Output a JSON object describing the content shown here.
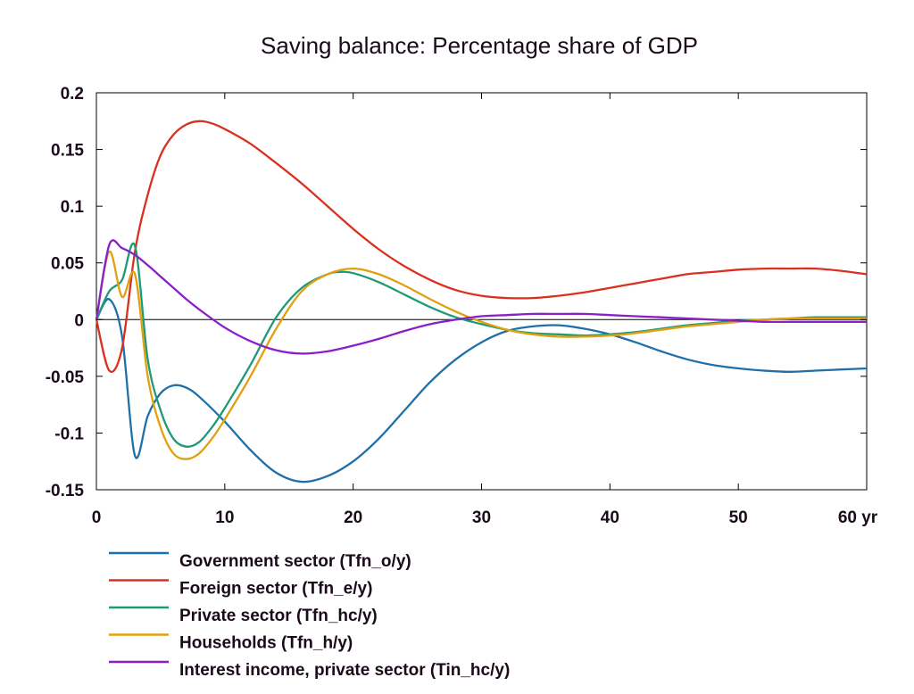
{
  "chart_data": {
    "type": "line",
    "title": "Saving balance: Percentage share of GDP",
    "xlabel": "yr",
    "ylabel": "",
    "xlim": [
      0,
      60
    ],
    "ylim": [
      -0.15,
      0.2
    ],
    "xticks": [
      0,
      10,
      20,
      30,
      40,
      50,
      60
    ],
    "xtick_labels": [
      "0",
      "10",
      "20",
      "30",
      "40",
      "50",
      "60 yr"
    ],
    "yticks": [
      0.2,
      0.15,
      0.1,
      0.05,
      0,
      -0.05,
      -0.1,
      -0.15
    ],
    "ytick_labels": [
      "0.2",
      "0.15",
      "0.1",
      "0.05",
      "0",
      "-0.05",
      "-0.1",
      "-0.15"
    ],
    "grid": false,
    "zero_line": true,
    "legend_position": "bottom",
    "series": [
      {
        "name": "Government sector (Tfn_o/y)",
        "color": "#1f6fa8",
        "x": [
          0,
          1,
          2,
          3,
          4,
          5,
          6,
          7,
          8,
          10,
          12,
          14,
          16,
          18,
          20,
          22,
          24,
          26,
          28,
          30,
          32,
          34,
          36,
          38,
          40,
          42,
          44,
          46,
          48,
          50,
          52,
          54,
          56,
          58,
          60
        ],
        "values": [
          0,
          0.018,
          -0.015,
          -0.12,
          -0.085,
          -0.065,
          -0.058,
          -0.06,
          -0.068,
          -0.09,
          -0.115,
          -0.135,
          -0.143,
          -0.138,
          -0.125,
          -0.105,
          -0.08,
          -0.055,
          -0.035,
          -0.02,
          -0.01,
          -0.006,
          -0.005,
          -0.008,
          -0.013,
          -0.02,
          -0.028,
          -0.035,
          -0.04,
          -0.043,
          -0.045,
          -0.046,
          -0.045,
          -0.044,
          -0.043
        ]
      },
      {
        "name": "Foreign sector (Tfn_e/y)",
        "color": "#d9301f",
        "x": [
          0,
          1,
          2,
          3,
          4,
          5,
          6,
          7,
          8,
          9,
          10,
          12,
          14,
          16,
          18,
          20,
          22,
          24,
          26,
          28,
          30,
          32,
          34,
          36,
          38,
          40,
          42,
          44,
          46,
          48,
          50,
          52,
          54,
          56,
          58,
          60
        ],
        "values": [
          0,
          -0.045,
          -0.025,
          0.06,
          0.11,
          0.145,
          0.163,
          0.172,
          0.175,
          0.173,
          0.168,
          0.155,
          0.138,
          0.12,
          0.1,
          0.08,
          0.062,
          0.047,
          0.035,
          0.026,
          0.021,
          0.019,
          0.019,
          0.021,
          0.024,
          0.028,
          0.032,
          0.036,
          0.04,
          0.042,
          0.044,
          0.045,
          0.045,
          0.045,
          0.043,
          0.04
        ]
      },
      {
        "name": "Private sector (Tfn_hc/y)",
        "color": "#1e9a78",
        "x": [
          0,
          1,
          2,
          3,
          4,
          5,
          6,
          7,
          8,
          9,
          10,
          12,
          14,
          16,
          18,
          19,
          20,
          22,
          24,
          26,
          28,
          30,
          32,
          34,
          36,
          38,
          40,
          42,
          44,
          46,
          48,
          50,
          52,
          54,
          56,
          58,
          60
        ],
        "values": [
          0,
          0.025,
          0.035,
          0.065,
          -0.035,
          -0.08,
          -0.105,
          -0.112,
          -0.108,
          -0.095,
          -0.078,
          -0.04,
          0.002,
          0.028,
          0.04,
          0.042,
          0.041,
          0.033,
          0.022,
          0.011,
          0.002,
          -0.004,
          -0.009,
          -0.012,
          -0.013,
          -0.014,
          -0.013,
          -0.011,
          -0.008,
          -0.005,
          -0.003,
          -0.001,
          0,
          0.001,
          0.002,
          0.002,
          0.002
        ]
      },
      {
        "name": "Households (Tfn_h/y)",
        "color": "#e0a010",
        "x": [
          0,
          1,
          2,
          3,
          4,
          5,
          6,
          7,
          8,
          9,
          10,
          12,
          14,
          16,
          18,
          20,
          22,
          24,
          26,
          28,
          30,
          32,
          34,
          36,
          38,
          40,
          42,
          44,
          46,
          48,
          50,
          52,
          54,
          56,
          58,
          60
        ],
        "values": [
          0,
          0.06,
          0.02,
          0.04,
          -0.05,
          -0.095,
          -0.118,
          -0.123,
          -0.118,
          -0.105,
          -0.088,
          -0.05,
          -0.008,
          0.025,
          0.04,
          0.045,
          0.04,
          0.03,
          0.018,
          0.007,
          -0.002,
          -0.009,
          -0.013,
          -0.015,
          -0.015,
          -0.014,
          -0.012,
          -0.009,
          -0.006,
          -0.004,
          -0.002,
          0,
          0.001,
          0.001,
          0.001,
          0.001
        ]
      },
      {
        "name": "Interest income, private sector (Tin_hc/y)",
        "color": "#8a1ec8",
        "x": [
          0,
          1,
          2,
          3,
          4,
          5,
          6,
          7,
          8,
          10,
          12,
          14,
          16,
          18,
          20,
          22,
          24,
          26,
          28,
          30,
          32,
          34,
          36,
          38,
          40,
          42,
          44,
          46,
          48,
          50,
          52,
          54,
          56,
          58,
          60
        ],
        "values": [
          0,
          0.066,
          0.063,
          0.057,
          0.048,
          0.038,
          0.028,
          0.018,
          0.009,
          -0.007,
          -0.019,
          -0.027,
          -0.03,
          -0.028,
          -0.023,
          -0.017,
          -0.01,
          -0.004,
          0,
          0.003,
          0.004,
          0.005,
          0.005,
          0.005,
          0.004,
          0.003,
          0.002,
          0.001,
          0,
          -0.001,
          -0.002,
          -0.002,
          -0.002,
          -0.002,
          -0.002
        ]
      }
    ]
  }
}
